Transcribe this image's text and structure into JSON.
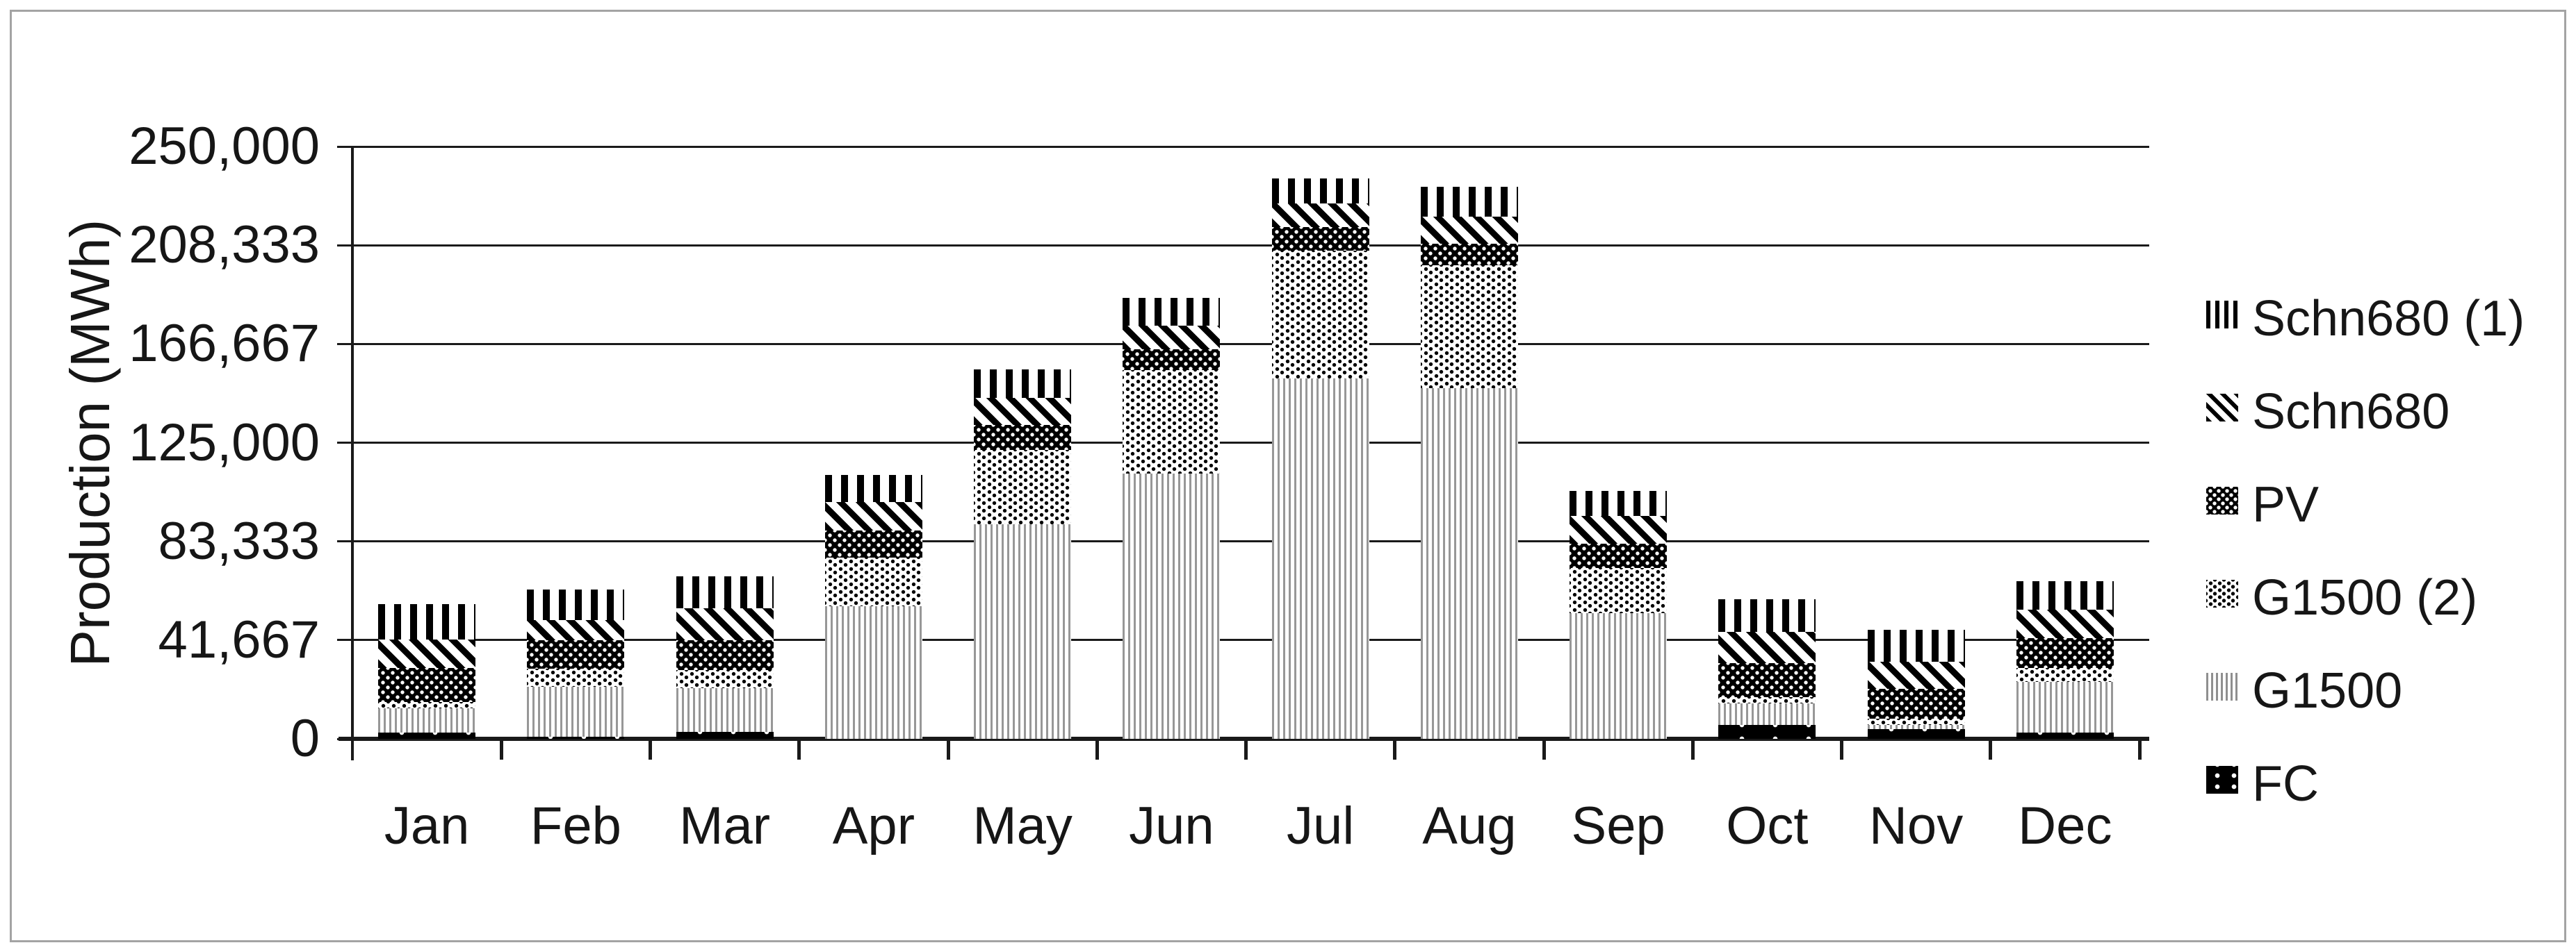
{
  "chart_data": {
    "type": "bar",
    "stacked": true,
    "title": "",
    "ylabel": "Production (MWh)",
    "xlabel": "",
    "ylim": [
      0,
      250000
    ],
    "grid": "horizontal",
    "legend_position": "right",
    "yticks": [
      {
        "value": 0,
        "label": "0"
      },
      {
        "value": 41667,
        "label": "41,667"
      },
      {
        "value": 83333,
        "label": "83,333"
      },
      {
        "value": 125000,
        "label": "125,000"
      },
      {
        "value": 166667,
        "label": "166,667"
      },
      {
        "value": 208333,
        "label": "208,333"
      },
      {
        "value": 250000,
        "label": "250,000"
      }
    ],
    "categories": [
      "Jan",
      "Feb",
      "Mar",
      "Apr",
      "May",
      "Jun",
      "Jul",
      "Aug",
      "Sep",
      "Oct",
      "Nov",
      "Dec"
    ],
    "series": [
      {
        "name": "FC",
        "pattern": "black-solid-dots",
        "values": [
          2500,
          1000,
          3000,
          0,
          0,
          0,
          0,
          0,
          0,
          6000,
          4000,
          2500
        ]
      },
      {
        "name": "G1500",
        "pattern": "gray-vertical-lines",
        "values": [
          10500,
          21000,
          18500,
          56000,
          90500,
          112000,
          152000,
          148000,
          53000,
          9000,
          2000,
          21500
        ]
      },
      {
        "name": "G1500 (2)",
        "pattern": "speckle-dots",
        "values": [
          2500,
          7500,
          7500,
          20500,
          31500,
          43500,
          54000,
          52000,
          19000,
          2500,
          2500,
          6000
        ]
      },
      {
        "name": "PV",
        "pattern": "black-white-dots",
        "values": [
          14500,
          12000,
          12500,
          11500,
          10500,
          9000,
          10000,
          9000,
          10500,
          14500,
          12500,
          12500
        ]
      },
      {
        "name": "Schn680",
        "pattern": "diagonal-stripes",
        "values": [
          12000,
          8500,
          13500,
          12000,
          11500,
          10000,
          10000,
          11500,
          11500,
          13000,
          11500,
          12000
        ]
      },
      {
        "name": "Schn680 (1)",
        "pattern": "vertical-bars",
        "values": [
          15000,
          13000,
          13500,
          11500,
          12000,
          11500,
          10500,
          12500,
          10500,
          14000,
          13500,
          12000
        ]
      }
    ],
    "legend": [
      {
        "label": "Schn680 (1)",
        "pattern": "vertical-bars"
      },
      {
        "label": "Schn680",
        "pattern": "diagonal-stripes"
      },
      {
        "label": "PV",
        "pattern": "black-white-dots"
      },
      {
        "label": "G1500 (2)",
        "pattern": "speckle-dots"
      },
      {
        "label": "G1500",
        "pattern": "gray-vertical-lines"
      },
      {
        "label": "FC",
        "pattern": "black-solid-dots"
      }
    ]
  }
}
